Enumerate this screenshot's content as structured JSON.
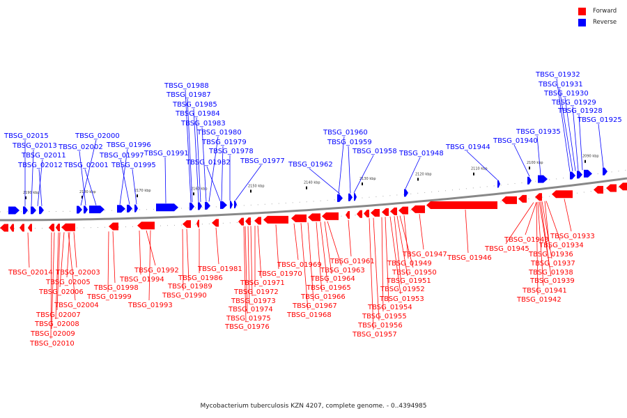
{
  "legend": {
    "items": [
      {
        "label": "Forward",
        "color": "#ff0000"
      },
      {
        "label": "Reverse",
        "color": "#0000ff"
      }
    ]
  },
  "caption": "Mycobacterium tuberculosis KZN 4207, complete genome. - 0..4394985",
  "colors": {
    "forward": "#ff0000",
    "reverse": "#0000ff",
    "axis": "#888888"
  },
  "ticks": [
    "2190 kbp",
    "2180 kbp",
    "2170 kbp",
    "2160 kbp",
    "2150 kbp",
    "2140 kbp",
    "2130 kbp",
    "2120 kbp",
    "2110 kbp",
    "2100 kbp",
    "2090 kbp"
  ],
  "reverse_labels": [
    "TBSG_02015",
    "TBSG_02013",
    "TBSG_02011",
    "TBSG_02012",
    "TBSG_02000",
    "TBSG_02002",
    "TBSG_02001",
    "TBSG_01996",
    "TBSG_01997",
    "TBSG_01995",
    "TBSG_01991",
    "TBSG_01988",
    "TBSG_01987",
    "TBSG_01985",
    "TBSG_01984",
    "TBSG_01983",
    "TBSG_01980",
    "TBSG_01979",
    "TBSG_01978",
    "TBSG_01982",
    "TBSG_01977",
    "TBSG_01960",
    "TBSG_01959",
    "TBSG_01958",
    "TBSG_01962",
    "TBSG_01948",
    "TBSG_01944",
    "TBSG_01940",
    "TBSG_01935",
    "TBSG_01932",
    "TBSG_01931",
    "TBSG_01930",
    "TBSG_01929",
    "TBSG_01928",
    "TBSG_01925"
  ],
  "forward_labels": [
    "TBSG_02014",
    "TBSG_02003",
    "TBSG_02005",
    "TBSG_02006",
    "TBSG_02004",
    "TBSG_02007",
    "TBSG_02008",
    "TBSG_02009",
    "TBSG_02010",
    "TBSG_01992",
    "TBSG_01994",
    "TBSG_01998",
    "TBSG_01999",
    "TBSG_01993",
    "TBSG_01981",
    "TBSG_01986",
    "TBSG_01989",
    "TBSG_01990",
    "TBSG_01970",
    "TBSG_01971",
    "TBSG_01972",
    "TBSG_01973",
    "TBSG_01974",
    "TBSG_01975",
    "TBSG_01976",
    "TBSG_01969",
    "TBSG_01963",
    "TBSG_01964",
    "TBSG_01965",
    "TBSG_01966",
    "TBSG_01967",
    "TBSG_01968",
    "TBSG_01961",
    "TBSG_01947",
    "TBSG_01949",
    "TBSG_01950",
    "TBSG_01951",
    "TBSG_01952",
    "TBSG_01953",
    "TBSG_01954",
    "TBSG_01955",
    "TBSG_01956",
    "TBSG_01957",
    "TBSG_01946",
    "TBSG_01943",
    "TBSG_01945",
    "TBSG_01933",
    "TBSG_01934",
    "TBSG_01936",
    "TBSG_01937",
    "TBSG_01938",
    "TBSG_01939",
    "TBSG_01941",
    "TBSG_01942"
  ]
}
